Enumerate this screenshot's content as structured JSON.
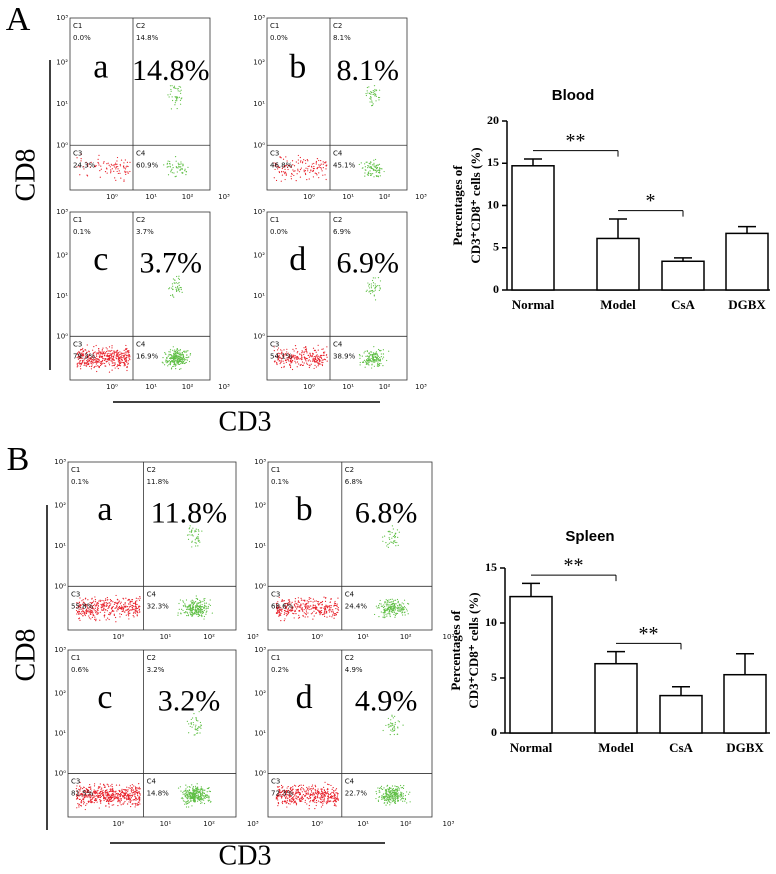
{
  "flow_panels": [
    {
      "label": "A",
      "y_axis_label": "CD8",
      "x_axis_label": "CD3",
      "tick_labels": [
        "10⁰",
        "10¹",
        "10²",
        "10³"
      ],
      "plots": [
        {
          "letter": "a",
          "percent": "14.8%",
          "quadrants": [
            {
              "name": "C1",
              "value": "0.0%"
            },
            {
              "name": "C2",
              "value": "14.8%"
            },
            {
              "name": "C3",
              "value": "24.3%"
            },
            {
              "name": "C4",
              "value": "60.9%"
            }
          ]
        },
        {
          "letter": "b",
          "percent": "8.1%",
          "quadrants": [
            {
              "name": "C1",
              "value": "0.0%"
            },
            {
              "name": "C2",
              "value": "8.1%"
            },
            {
              "name": "C3",
              "value": "46.8%"
            },
            {
              "name": "C4",
              "value": "45.1%"
            }
          ]
        },
        {
          "letter": "c",
          "percent": "3.7%",
          "quadrants": [
            {
              "name": "C1",
              "value": "0.1%"
            },
            {
              "name": "C2",
              "value": "3.7%"
            },
            {
              "name": "C3",
              "value": "79.3%"
            },
            {
              "name": "C4",
              "value": "16.9%"
            }
          ]
        },
        {
          "letter": "d",
          "percent": "6.9%",
          "quadrants": [
            {
              "name": "C1",
              "value": "0.0%"
            },
            {
              "name": "C2",
              "value": "6.9%"
            },
            {
              "name": "C3",
              "value": "54.1%"
            },
            {
              "name": "C4",
              "value": "38.9%"
            }
          ]
        }
      ]
    },
    {
      "label": "B",
      "y_axis_label": "CD8",
      "x_axis_label": "CD3",
      "tick_labels": [
        "10⁰",
        "10¹",
        "10²",
        "10³"
      ],
      "plots": [
        {
          "letter": "a",
          "percent": "11.8%",
          "quadrants": [
            {
              "name": "C1",
              "value": "0.1%"
            },
            {
              "name": "C2",
              "value": "11.8%"
            },
            {
              "name": "C3",
              "value": "55.8%"
            },
            {
              "name": "C4",
              "value": "32.3%"
            }
          ]
        },
        {
          "letter": "b",
          "percent": "6.8%",
          "quadrants": [
            {
              "name": "C1",
              "value": "0.1%"
            },
            {
              "name": "C2",
              "value": "6.8%"
            },
            {
              "name": "C3",
              "value": "68.6%"
            },
            {
              "name": "C4",
              "value": "24.4%"
            }
          ]
        },
        {
          "letter": "c",
          "percent": "3.2%",
          "quadrants": [
            {
              "name": "C1",
              "value": "0.6%"
            },
            {
              "name": "C2",
              "value": "3.2%"
            },
            {
              "name": "C3",
              "value": "81.5%"
            },
            {
              "name": "C4",
              "value": "14.8%"
            }
          ]
        },
        {
          "letter": "d",
          "percent": "4.9%",
          "quadrants": [
            {
              "name": "C1",
              "value": "0.2%"
            },
            {
              "name": "C2",
              "value": "4.9%"
            },
            {
              "name": "C3",
              "value": "72.3%"
            },
            {
              "name": "C4",
              "value": "22.7%"
            }
          ]
        }
      ]
    }
  ],
  "chart_data": [
    {
      "type": "bar",
      "title": "Blood",
      "y_label": [
        "Percentages of",
        "CD3⁺CD8⁺ cells (%)"
      ],
      "categories": [
        "Normal",
        "Model",
        "CsA",
        "DGBX"
      ],
      "values": [
        14.7,
        6.1,
        3.4,
        6.7
      ],
      "errors": [
        0.8,
        2.3,
        0.4,
        0.8
      ],
      "color": "#ffffff",
      "ylim": [
        0,
        20
      ],
      "yticks": [
        0,
        5,
        10,
        15,
        20
      ],
      "annotations": [
        {
          "between": [
            "Normal",
            "Model"
          ],
          "label": "**"
        },
        {
          "between": [
            "Model",
            "CsA"
          ],
          "label": "*"
        }
      ]
    },
    {
      "type": "bar",
      "title": "Spleen",
      "y_label": [
        "Percentages of",
        "CD3⁺CD8⁺ cells (%)"
      ],
      "categories": [
        "Normal",
        "Model",
        "CsA",
        "DGBX"
      ],
      "values": [
        12.4,
        6.3,
        3.4,
        5.3
      ],
      "errors": [
        1.2,
        1.1,
        0.8,
        1.9
      ],
      "color": "#ffffff",
      "ylim": [
        0,
        15
      ],
      "yticks": [
        0,
        5,
        10,
        15
      ],
      "annotations": [
        {
          "between": [
            "Normal",
            "Model"
          ],
          "label": "**"
        },
        {
          "between": [
            "Model",
            "CsA"
          ],
          "label": "**"
        }
      ]
    }
  ]
}
